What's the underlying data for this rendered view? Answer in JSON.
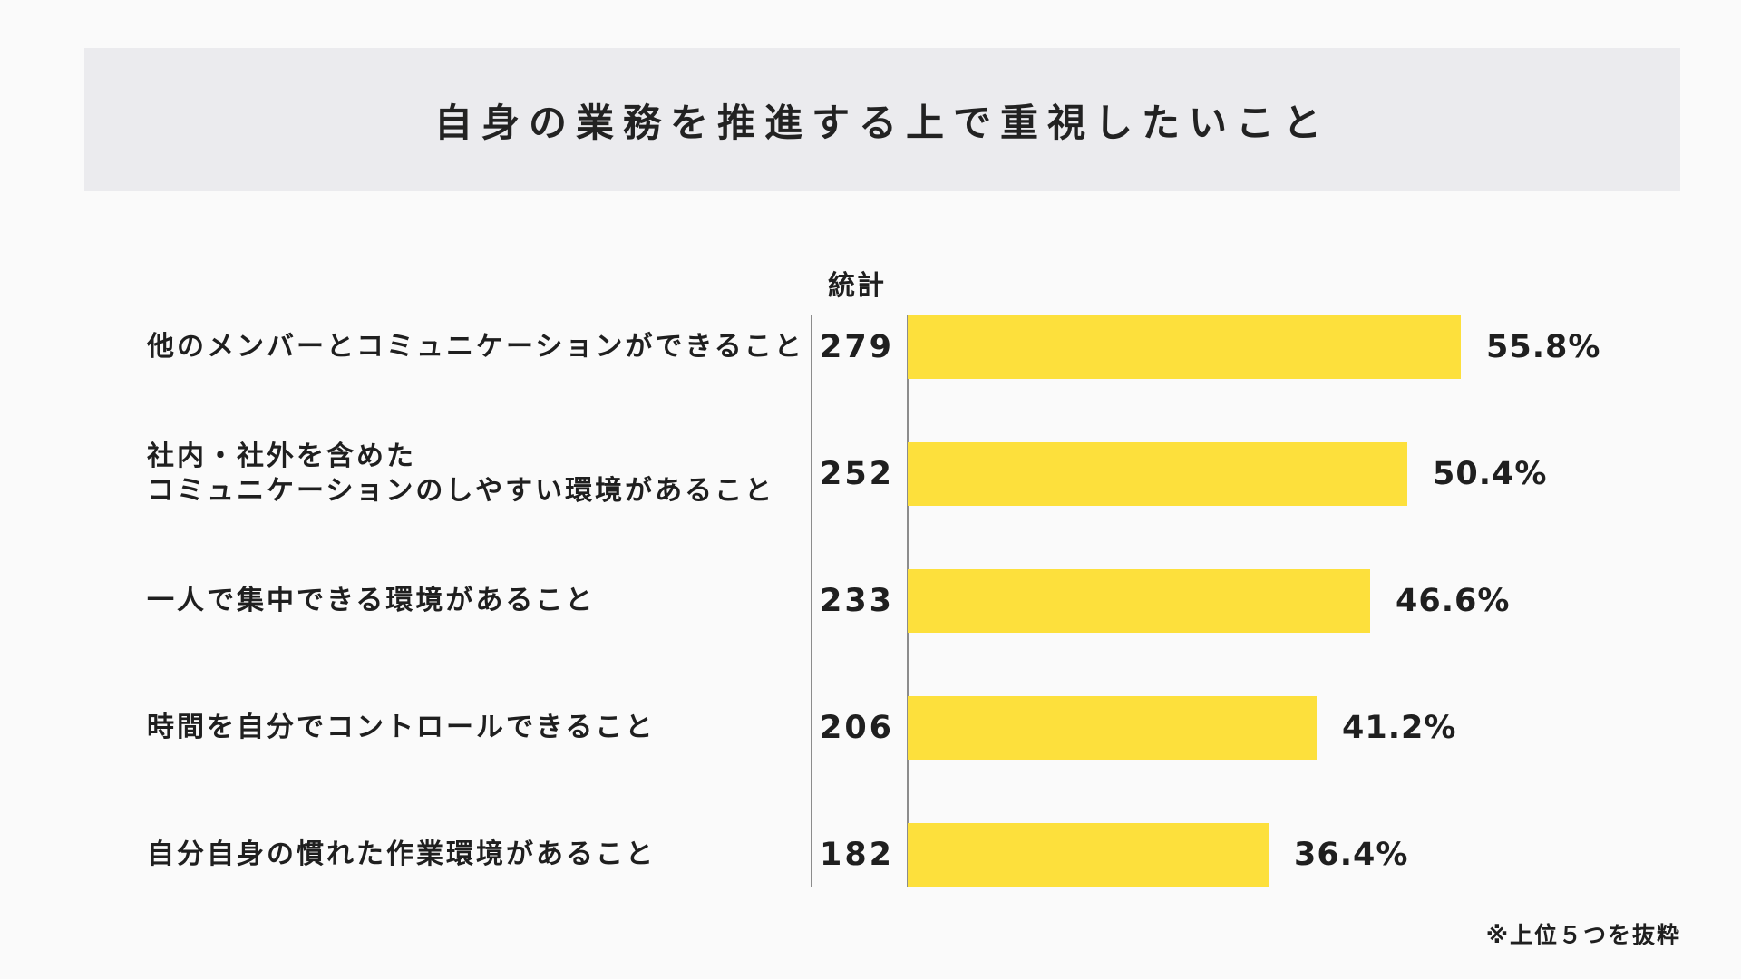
{
  "title": "自身の業務を推進する上で重視したいこと",
  "column_header": "統計",
  "footnote": "※上位５つを抜粋",
  "colors": {
    "bar": "#fde03c",
    "title_band": "#ebebee",
    "background": "#fafafa",
    "text": "#1f1f1f",
    "divider": "#8c8c8c"
  },
  "chart_data": {
    "type": "bar",
    "orientation": "horizontal",
    "title": "自身の業務を推進する上で重視したいこと",
    "column_header": "統計",
    "categories": [
      [
        "他のメンバーとコミュニケーションができること"
      ],
      [
        "社内・社外を含めた",
        "コミュニケーションのしやすい環境があること"
      ],
      [
        "一人で集中できる環境があること"
      ],
      [
        "時間を自分でコントロールできること"
      ],
      [
        "自分自身の慣れた作業環境があること"
      ]
    ],
    "counts": [
      "279",
      "252",
      "233",
      "206",
      "182"
    ],
    "values": [
      55.8,
      50.4,
      46.6,
      41.2,
      36.4
    ],
    "value_labels": [
      "55.8%",
      "50.4%",
      "46.6%",
      "41.2%",
      "36.4%"
    ],
    "xlim": [
      0,
      100
    ],
    "grid": false,
    "legend": "none"
  }
}
